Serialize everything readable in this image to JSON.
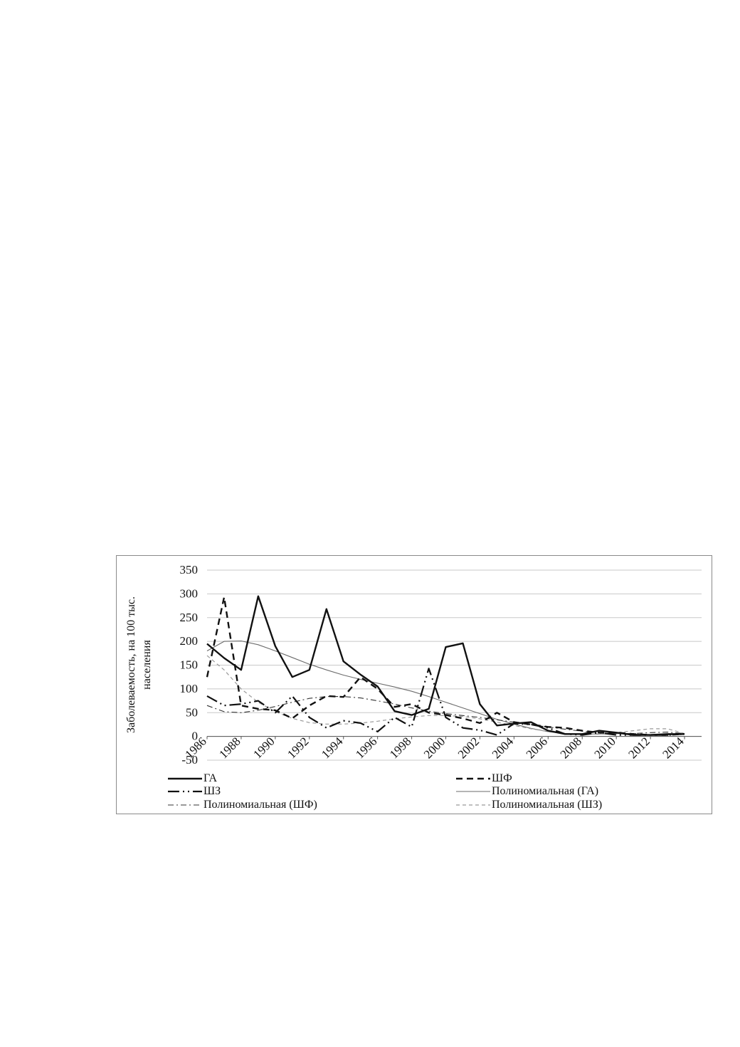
{
  "chart_data": {
    "type": "line",
    "ylabel": "Заболеваемость, на 100 тыс. населения",
    "ylabel_lines": [
      "Заболеваемость, на 100 тыс.",
      "населения"
    ],
    "ylim": [
      -50,
      350
    ],
    "yticks": [
      -50,
      0,
      50,
      100,
      150,
      200,
      250,
      300,
      350
    ],
    "xlim": [
      1986,
      2015
    ],
    "xticks": [
      1986,
      1988,
      1990,
      1992,
      1994,
      1996,
      1998,
      2000,
      2002,
      2004,
      2006,
      2008,
      2010,
      2012,
      2014
    ],
    "x": [
      1986,
      1987,
      1988,
      1989,
      1990,
      1991,
      1992,
      1993,
      1994,
      1995,
      1996,
      1997,
      1998,
      1999,
      2000,
      2001,
      2002,
      2003,
      2004,
      2005,
      2006,
      2007,
      2008,
      2009,
      2010,
      2011,
      2012,
      2013,
      2014
    ],
    "grid": true,
    "legend_position": "bottom",
    "series": [
      {
        "name": "ГА",
        "style": "solid-thick",
        "values": [
          195,
          165,
          140,
          295,
          190,
          125,
          140,
          268,
          158,
          130,
          105,
          53,
          45,
          58,
          188,
          196,
          68,
          23,
          27,
          30,
          12,
          5,
          5,
          12,
          8,
          3,
          3,
          5,
          5
        ]
      },
      {
        "name": "ШФ",
        "style": "dashed-thick",
        "values": [
          125,
          293,
          65,
          58,
          55,
          38,
          65,
          85,
          83,
          125,
          100,
          62,
          68,
          50,
          45,
          38,
          28,
          50,
          30,
          25,
          20,
          18,
          12,
          8,
          8,
          5,
          3,
          3,
          5
        ]
      },
      {
        "name": "ШЗ",
        "style": "longdash-dot-dot",
        "values": [
          85,
          65,
          68,
          75,
          50,
          85,
          40,
          18,
          33,
          28,
          10,
          40,
          20,
          143,
          40,
          18,
          13,
          3,
          27,
          25,
          18,
          5,
          3,
          8,
          3,
          3,
          3,
          3,
          5
        ]
      },
      {
        "name": "Полиномиальная (ГА)",
        "style": "thin-solid",
        "values": [
          180,
          200,
          201,
          193,
          180,
          166,
          152,
          140,
          129,
          120,
          112,
          104,
          95,
          84,
          72,
          60,
          48,
          36,
          26,
          17,
          10,
          6,
          5,
          5,
          6,
          5,
          4,
          3,
          4
        ]
      },
      {
        "name": "Полиномиальная (ШФ)",
        "style": "thin-dashdot",
        "values": [
          65,
          52,
          50,
          55,
          63,
          72,
          80,
          84,
          84,
          81,
          75,
          68,
          60,
          53,
          48,
          44,
          40,
          35,
          30,
          25,
          20,
          15,
          11,
          8,
          6,
          6,
          8,
          9,
          6
        ]
      },
      {
        "name": "Полиномиальная (ШЗ)",
        "style": "thin-dashed-gray",
        "values": [
          170,
          140,
          100,
          72,
          52,
          38,
          29,
          26,
          26,
          28,
          32,
          37,
          41,
          44,
          44,
          42,
          37,
          30,
          23,
          16,
          10,
          6,
          5,
          5,
          8,
          12,
          16,
          16,
          6
        ]
      }
    ],
    "legend": [
      {
        "label": "ГА",
        "style": "solid-thick"
      },
      {
        "label": "ШФ",
        "style": "dashed-thick"
      },
      {
        "label": "ШЗ",
        "style": "longdash-dot-dot"
      },
      {
        "label": "Полиномиальная (ГА)",
        "style": "thin-solid"
      },
      {
        "label": "Полиномиальная (ШФ)",
        "style": "thin-dashdot"
      },
      {
        "label": "Полиномиальная (ШЗ)",
        "style": "thin-dashed-gray"
      }
    ],
    "colors": {
      "series": "#111111",
      "trend_solid": "#6b6b6b",
      "trend_dashdot": "#333333",
      "trend_dashed": "#9a9a9a",
      "grid": "#c8c8c8"
    }
  }
}
